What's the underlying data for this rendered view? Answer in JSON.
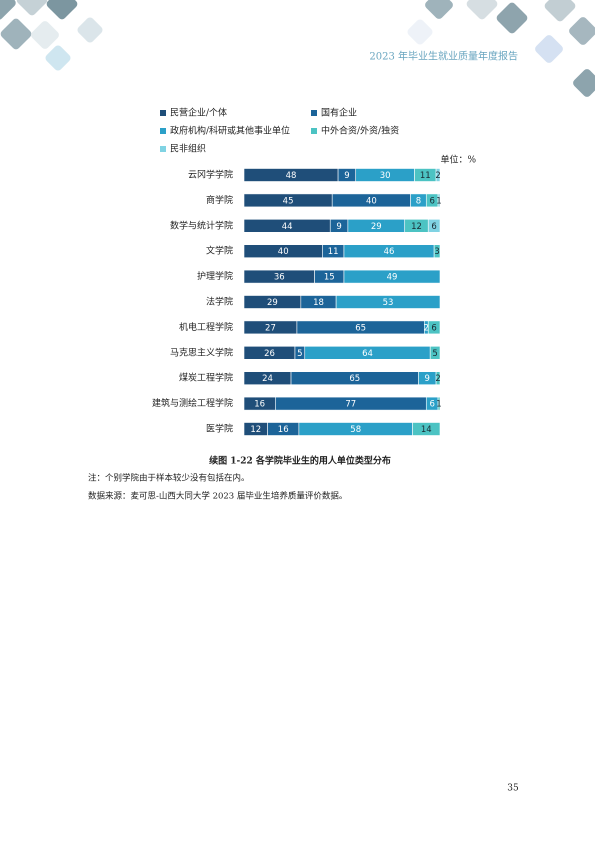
{
  "header": {
    "title": "2023 年毕业生就业质量年度报告"
  },
  "chart_data": {
    "type": "stacked-bar-horizontal",
    "unit": "单位：%",
    "categories": [
      "云冈学学院",
      "商学院",
      "数学与统计学院",
      "文学院",
      "护理学院",
      "法学院",
      "机电工程学院",
      "马克思主义学院",
      "煤炭工程学院",
      "建筑与测绘工程学院",
      "医学院"
    ],
    "series": [
      {
        "name": "民营企业/个体",
        "color": "#1f4e79",
        "values": [
          48,
          45,
          44,
          40,
          36,
          29,
          27,
          26,
          24,
          16,
          12
        ]
      },
      {
        "name": "国有企业",
        "color": "#1c6499",
        "values": [
          9,
          40,
          9,
          11,
          15,
          18,
          65,
          5,
          65,
          77,
          16
        ]
      },
      {
        "name": "政府机构/科研或其他事业单位",
        "color": "#2ba0c8",
        "values": [
          30,
          8,
          29,
          46,
          49,
          53,
          2,
          64,
          9,
          6,
          58
        ]
      },
      {
        "name": "中外合资/外资/独资",
        "color": "#4cc3c3",
        "values": [
          11,
          6,
          12,
          3,
          null,
          null,
          6,
          5,
          2,
          1,
          14
        ]
      },
      {
        "name": "民非组织",
        "color": "#80d3e3",
        "values": [
          2,
          1,
          6,
          null,
          null,
          null,
          null,
          null,
          null,
          null,
          null
        ]
      }
    ]
  },
  "caption": "续图 1-22 各学院毕业生的用人单位类型分布",
  "notes": [
    "注：个别学院由于样本较少没有包括在内。",
    "数据来源：麦可思-山西大同大学 2023 届毕业生培养质量评价数据。"
  ],
  "page_number": "35"
}
